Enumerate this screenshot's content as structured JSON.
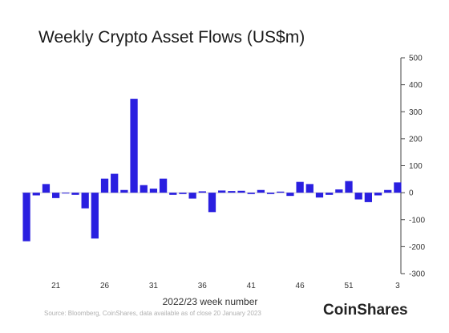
{
  "chart_data": {
    "type": "bar",
    "title": "Weekly Crypto Asset Flows (US$m)",
    "xlabel": "2022/23 week number",
    "ylabel": "",
    "ylim": [
      -300,
      500
    ],
    "yticks": [
      500,
      400,
      300,
      200,
      100,
      0,
      -100,
      -200,
      -300
    ],
    "y_axis_side": "right",
    "grid": false,
    "color": "#2a1fe0",
    "x_tick_labels": [
      {
        "index": 3,
        "label": "21"
      },
      {
        "index": 8,
        "label": "26"
      },
      {
        "index": 13,
        "label": "31"
      },
      {
        "index": 18,
        "label": "36"
      },
      {
        "index": 23,
        "label": "41"
      },
      {
        "index": 28,
        "label": "46"
      },
      {
        "index": 33,
        "label": "51"
      },
      {
        "index": 38,
        "label": "3"
      }
    ],
    "values": [
      -180,
      -10,
      32,
      -20,
      -3,
      -8,
      -58,
      -170,
      52,
      70,
      10,
      348,
      28,
      15,
      52,
      -8,
      -5,
      -22,
      5,
      -72,
      8,
      6,
      7,
      -5,
      10,
      -5,
      4,
      -12,
      40,
      32,
      -18,
      -8,
      12,
      43,
      -25,
      -35,
      -10,
      10,
      38
    ],
    "source": "Source: Bloomberg, CoinShares, data available as of close 20 January 2023",
    "brand": "CoinShares"
  }
}
